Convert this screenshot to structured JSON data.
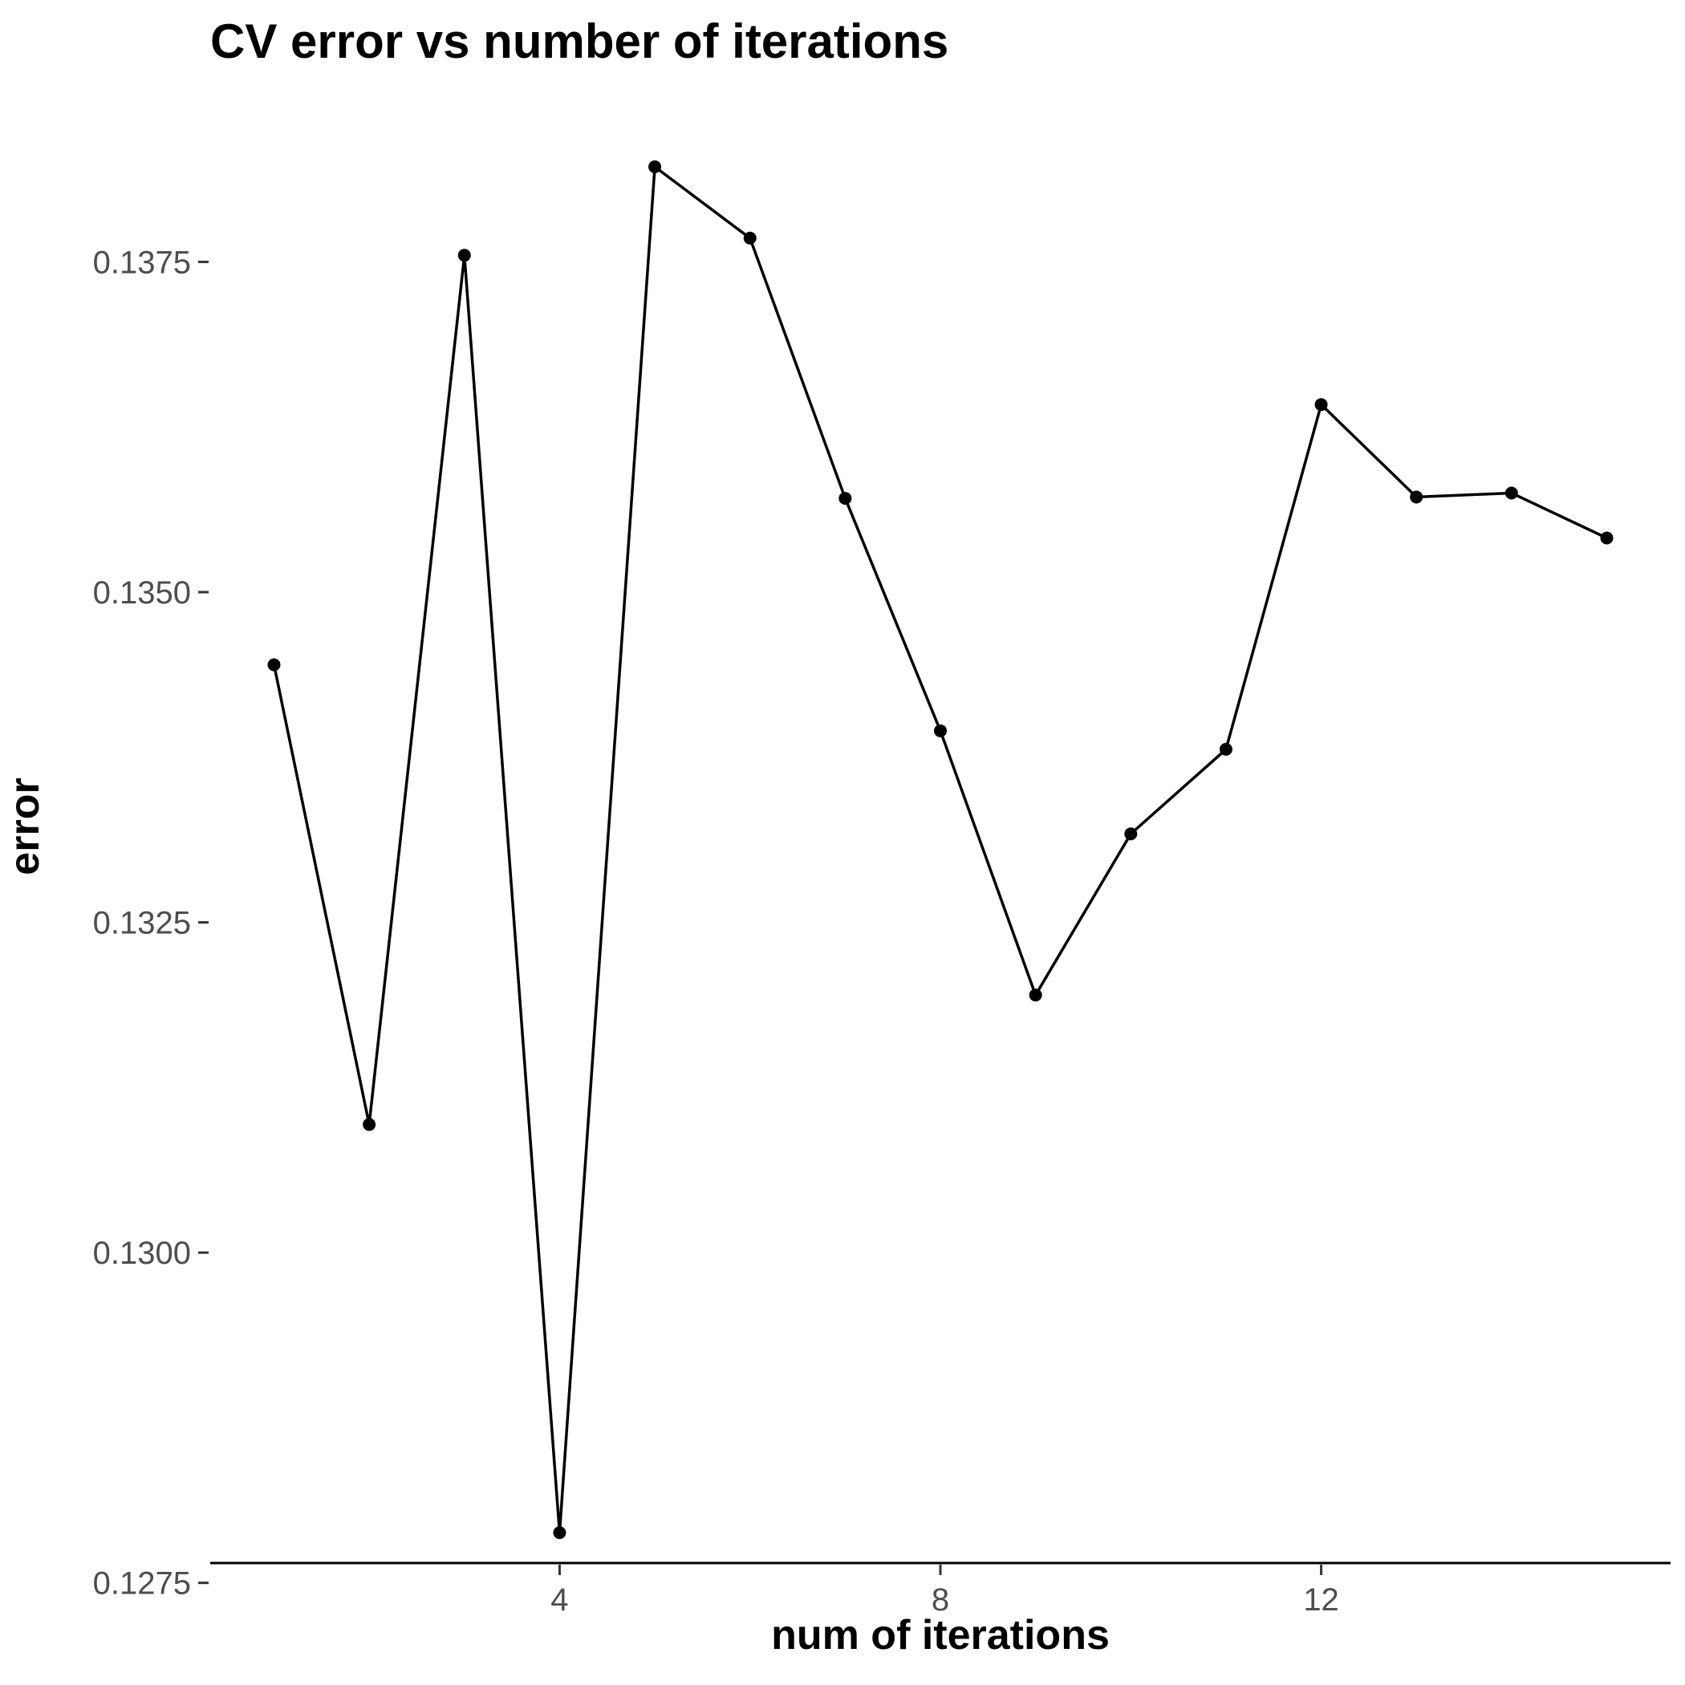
{
  "chart_data": {
    "type": "line",
    "title": "CV error vs number of iterations",
    "xlabel": "num of iterations",
    "ylabel": "error",
    "x": [
      1,
      2,
      3,
      4,
      5,
      6,
      7,
      8,
      9,
      10,
      11,
      12,
      13,
      14,
      15
    ],
    "series": [
      {
        "values": [
          0.13445,
          0.13097,
          0.13755,
          0.12788,
          0.13822,
          0.13768,
          0.13571,
          0.13395,
          0.13195,
          0.13317,
          0.13381,
          0.13642,
          0.13572,
          0.13575,
          0.13541
        ]
      }
    ],
    "xlim": [
      0.33,
      15.67
    ],
    "ylim": [
      0.12765,
      0.13845
    ],
    "xticks": [
      4,
      8,
      12
    ],
    "xtick_labels": [
      "4",
      "8",
      "12"
    ],
    "yticks": [
      0.1275,
      0.13,
      0.1325,
      0.135,
      0.1375
    ],
    "ytick_labels": [
      "0.1275",
      "0.1300",
      "0.1325",
      "0.1350",
      "0.1375"
    ],
    "grid": false,
    "legend": "none",
    "colors": {
      "line": "#000000",
      "points": "#000000",
      "tick_text": "#4d4d4d"
    }
  }
}
